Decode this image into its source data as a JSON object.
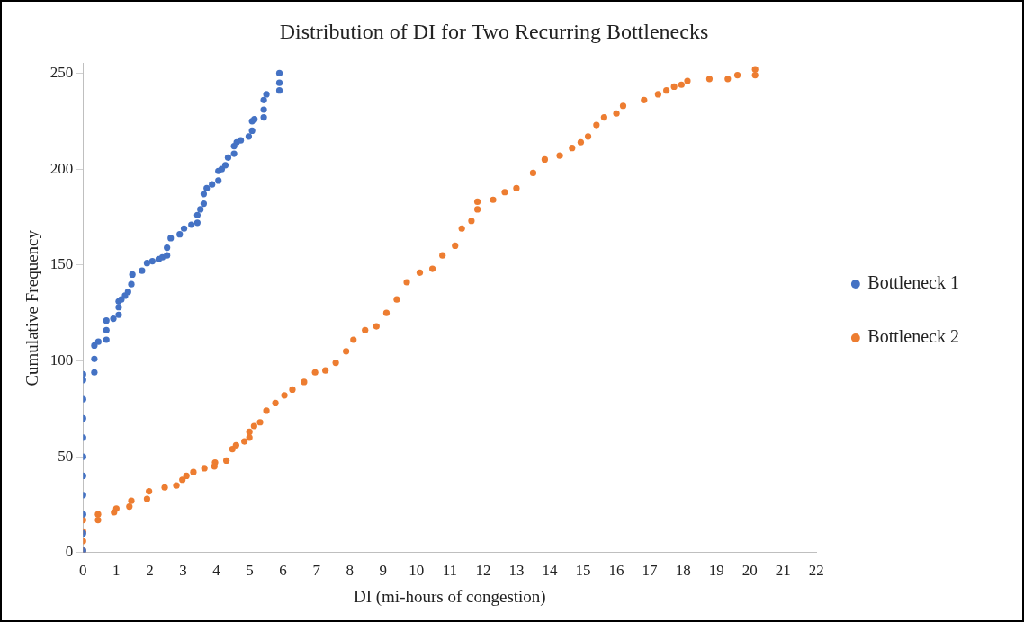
{
  "chart_data": {
    "type": "scatter",
    "title": "Distribution of DI for Two Recurring Bottlenecks",
    "xlabel": "DI (mi-hours of congestion)",
    "ylabel": "Cumulative Frequency",
    "xlim": [
      0,
      22
    ],
    "xticks": [
      0,
      1,
      2,
      3,
      4,
      5,
      6,
      7,
      8,
      9,
      10,
      11,
      12,
      13,
      14,
      15,
      16,
      17,
      18,
      19,
      20,
      21,
      22
    ],
    "ylim": [
      0,
      255
    ],
    "yticks": [
      0,
      50,
      100,
      150,
      200,
      250
    ],
    "grid": false,
    "legend": "right",
    "marker": "circle",
    "series": [
      {
        "name": "Bottleneck 1",
        "color": "#4472c4",
        "x": [
          0,
          0,
          0,
          0,
          0,
          0,
          0,
          0,
          0,
          0,
          0,
          0.34,
          0.34,
          0.34,
          0.46,
          0.7,
          0.7,
          0.7,
          0.91,
          1.07,
          1.07,
          1.07,
          1.15,
          1.26,
          1.35,
          1.45,
          1.48,
          1.77,
          1.92,
          2.08,
          2.27,
          2.38,
          2.52,
          2.52,
          2.63,
          2.9,
          3.03,
          3.25,
          3.43,
          3.43,
          3.52,
          3.62,
          3.62,
          3.71,
          3.87,
          4.06,
          4.06,
          4.16,
          4.27,
          4.35,
          4.53,
          4.53,
          4.61,
          4.73,
          4.97,
          5.07,
          5.07,
          5.14,
          5.42,
          5.42,
          5.42,
          5.5,
          5.89,
          5.89,
          5.89
        ],
        "values": [
          1,
          10,
          20,
          30,
          40,
          50,
          60,
          70,
          80,
          90,
          93,
          94,
          101,
          108,
          110,
          111,
          116,
          121,
          122,
          124,
          128,
          131,
          132,
          134,
          136,
          140,
          145,
          147,
          151,
          152,
          153,
          154,
          155,
          159,
          164,
          166,
          169,
          171,
          172,
          176,
          179,
          182,
          187,
          190,
          192,
          194,
          199,
          200,
          202,
          206,
          208,
          212,
          214,
          215,
          217,
          220,
          225,
          226,
          227,
          231,
          236,
          239,
          241,
          245,
          250
        ]
      },
      {
        "name": "Bottleneck 2",
        "color": "#ed7d31",
        "x": [
          0,
          0,
          0,
          0,
          0.45,
          0.45,
          0.93,
          1,
          1.39,
          1.45,
          1.92,
          1.98,
          2.45,
          2.8,
          2.98,
          3.1,
          3.31,
          3.64,
          3.94,
          3.96,
          4.3,
          4.48,
          4.59,
          4.84,
          4.99,
          4.99,
          5.13,
          5.31,
          5.5,
          5.77,
          6.04,
          6.28,
          6.63,
          6.96,
          7.27,
          7.58,
          7.89,
          8.11,
          8.46,
          8.8,
          9.1,
          9.41,
          9.71,
          10.1,
          10.48,
          10.78,
          11.16,
          11.36,
          11.65,
          11.83,
          11.83,
          12.3,
          12.65,
          13,
          13.5,
          13.85,
          14.3,
          14.67,
          14.93,
          15.15,
          15.4,
          15.63,
          16,
          16.2,
          16.83,
          17.25,
          17.5,
          17.73,
          17.95,
          18.13,
          18.79,
          19.34,
          19.63,
          20.16,
          20.16
        ],
        "values": [
          1,
          6,
          11,
          17,
          17,
          20,
          21,
          23,
          24,
          27,
          28,
          32,
          34,
          35,
          38,
          40,
          42,
          44,
          45,
          47,
          48,
          54,
          56,
          58,
          60,
          63,
          66,
          68,
          74,
          78,
          82,
          85,
          89,
          94,
          95,
          99,
          105,
          111,
          116,
          118,
          125,
          132,
          141,
          146,
          148,
          155,
          160,
          169,
          173,
          179,
          183,
          184,
          188,
          190,
          198,
          205,
          207,
          211,
          214,
          217,
          223,
          227,
          229,
          233,
          236,
          239,
          241,
          243,
          244,
          246,
          247,
          247,
          249,
          249,
          252
        ]
      }
    ]
  }
}
